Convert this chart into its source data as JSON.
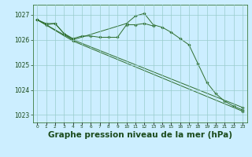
{
  "background_color": "#cceeff",
  "grid_color": "#99cccc",
  "line_color": "#2d6e2d",
  "marker_color": "#2d6e2d",
  "title": "Graphe pression niveau de la mer (hPa)",
  "title_color": "#1a4a1a",
  "title_fontsize": 7.5,
  "ylim": [
    1022.7,
    1027.4
  ],
  "xlim": [
    -0.5,
    23.5
  ],
  "yticks": [
    1023,
    1024,
    1025,
    1026,
    1027
  ],
  "lines": [
    {
      "x": [
        0,
        1,
        2,
        3,
        4,
        5,
        6,
        7,
        8,
        9,
        10,
        11,
        12,
        13
      ],
      "y": [
        1026.8,
        1026.6,
        1026.65,
        1026.25,
        1026.05,
        1026.15,
        1026.15,
        1026.1,
        1026.1,
        1026.1,
        1026.6,
        1026.6,
        1026.65,
        1026.55
      ]
    },
    {
      "x": [
        0,
        1,
        2,
        3,
        4,
        10,
        11,
        12,
        13,
        14,
        15,
        16,
        17,
        18,
        19,
        20,
        21,
        22,
        23
      ],
      "y": [
        1026.8,
        1026.65,
        1026.65,
        1026.25,
        1026.0,
        1026.65,
        1026.95,
        1027.05,
        1026.6,
        1026.5,
        1026.3,
        1026.05,
        1025.8,
        1025.05,
        1024.3,
        1023.85,
        1023.55,
        1023.35,
        1023.2
      ]
    },
    {
      "x": [
        0,
        3,
        4,
        23
      ],
      "y": [
        1026.8,
        1026.2,
        1026.0,
        1023.3
      ]
    },
    {
      "x": [
        0,
        4,
        23
      ],
      "y": [
        1026.8,
        1025.95,
        1023.15
      ]
    }
  ]
}
